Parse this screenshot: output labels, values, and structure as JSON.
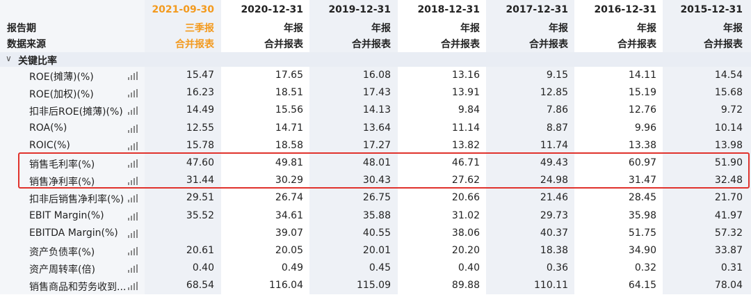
{
  "header": {
    "row_labels": [
      "报告期",
      "数据来源"
    ],
    "columns": [
      {
        "date": "2021-09-30",
        "type": "三季报",
        "source": "合并报表",
        "highlight": true
      },
      {
        "date": "2020-12-31",
        "type": "年报",
        "source": "合并报表",
        "highlight": false
      },
      {
        "date": "2019-12-31",
        "type": "年报",
        "source": "合并报表",
        "highlight": false
      },
      {
        "date": "2018-12-31",
        "type": "年报",
        "source": "合并报表",
        "highlight": false
      },
      {
        "date": "2017-12-31",
        "type": "年报",
        "source": "合并报表",
        "highlight": false
      },
      {
        "date": "2016-12-31",
        "type": "年报",
        "source": "合并报表",
        "highlight": false
      },
      {
        "date": "2015-12-31",
        "type": "年报",
        "source": "合并报表",
        "highlight": false
      }
    ]
  },
  "section": {
    "title": "关键比率",
    "expanded": true
  },
  "rows": [
    {
      "label": "ROE(摊薄)(%)",
      "values": [
        "15.47",
        "17.65",
        "16.08",
        "13.16",
        "9.15",
        "14.11",
        "14.54"
      ]
    },
    {
      "label": "ROE(加权)(%)",
      "values": [
        "16.23",
        "18.51",
        "17.43",
        "13.91",
        "12.85",
        "15.19",
        "15.68"
      ]
    },
    {
      "label": "扣非后ROE(摊薄)(%)",
      "values": [
        "14.49",
        "15.56",
        "14.13",
        "9.84",
        "7.86",
        "12.76",
        "9.72"
      ]
    },
    {
      "label": "ROA(%)",
      "values": [
        "12.55",
        "14.71",
        "13.64",
        "11.14",
        "8.87",
        "9.96",
        "10.14"
      ]
    },
    {
      "label": "ROIC(%)",
      "values": [
        "15.78",
        "18.58",
        "17.27",
        "13.82",
        "11.74",
        "13.38",
        "13.98"
      ]
    },
    {
      "label": "销售毛利率(%)",
      "values": [
        "47.60",
        "49.81",
        "48.01",
        "46.71",
        "49.43",
        "60.97",
        "51.90"
      ]
    },
    {
      "label": "销售净利率(%)",
      "values": [
        "31.44",
        "30.29",
        "30.43",
        "27.62",
        "24.98",
        "31.47",
        "32.48"
      ]
    },
    {
      "label": "扣非后销售净利率(%)",
      "values": [
        "29.51",
        "26.74",
        "26.75",
        "20.66",
        "21.46",
        "28.45",
        "21.70"
      ]
    },
    {
      "label": "EBIT Margin(%)",
      "values": [
        "35.52",
        "34.61",
        "35.88",
        "31.02",
        "29.73",
        "35.98",
        "41.97"
      ]
    },
    {
      "label": "EBITDA Margin(%)",
      "values": [
        "",
        "39.07",
        "40.55",
        "38.06",
        "40.37",
        "51.75",
        "57.32"
      ]
    },
    {
      "label": "资产负债率(%)",
      "values": [
        "20.61",
        "20.05",
        "20.01",
        "20.20",
        "18.38",
        "34.90",
        "33.87"
      ]
    },
    {
      "label": "资产周转率(倍)",
      "values": [
        "0.40",
        "0.49",
        "0.45",
        "0.40",
        "0.36",
        "0.32",
        "0.31"
      ]
    },
    {
      "label": "销售商品和劳务收到...",
      "values": [
        "68.54",
        "116.04",
        "115.09",
        "89.88",
        "110.11",
        "64.15",
        "78.04"
      ]
    }
  ],
  "colors": {
    "accent": "#f39a1e",
    "highlight_border": "#e0322c",
    "column_bg": "#eef1f6"
  },
  "icons": {
    "row_icon": "bar-chart-icon",
    "section_icon": "chevron-down-icon"
  }
}
